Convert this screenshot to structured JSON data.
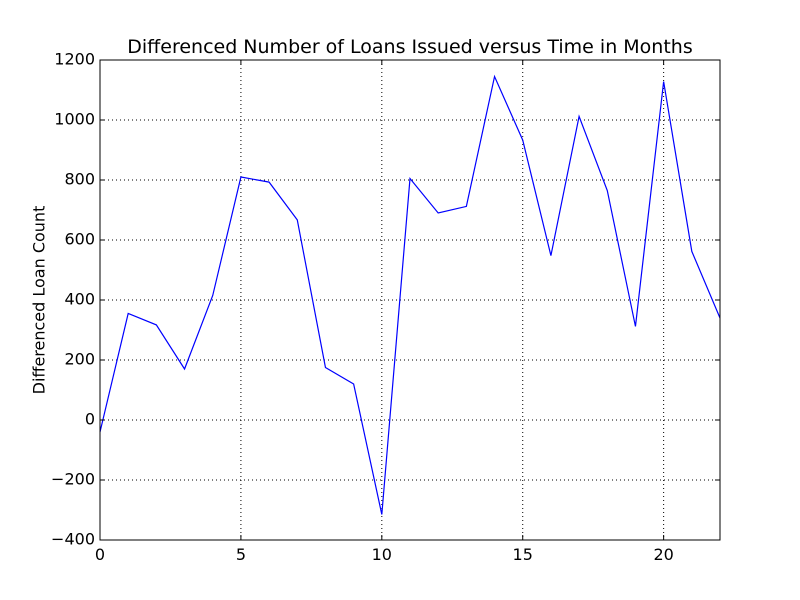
{
  "chart_data": {
    "type": "line",
    "title": "Differenced Number of Loans Issued versus Time in Months",
    "xlabel": "",
    "ylabel": "Differenced Loan Count",
    "xlim": [
      0,
      22
    ],
    "ylim": [
      -400,
      1200
    ],
    "xticks": [
      0,
      5,
      10,
      15,
      20
    ],
    "xtick_labels": [
      "0",
      "5",
      "10",
      "15",
      "20"
    ],
    "yticks": [
      -400,
      -200,
      0,
      200,
      400,
      600,
      800,
      1000,
      1200
    ],
    "ytick_labels": [
      "−400",
      "−200",
      "0",
      "200",
      "400",
      "600",
      "800",
      "1000",
      "1200"
    ],
    "grid": true,
    "series": [
      {
        "color": "#0000ff",
        "x": [
          0,
          1,
          2,
          3,
          4,
          5,
          6,
          7,
          8,
          9,
          10,
          11,
          12,
          13,
          14,
          15,
          16,
          17,
          18,
          19,
          20,
          21,
          22
        ],
        "values": [
          -40,
          355,
          317,
          170,
          415,
          810,
          793,
          667,
          175,
          120,
          -315,
          805,
          690,
          712,
          1145,
          933,
          548,
          1012,
          765,
          312,
          1128,
          562,
          340
        ]
      }
    ]
  }
}
